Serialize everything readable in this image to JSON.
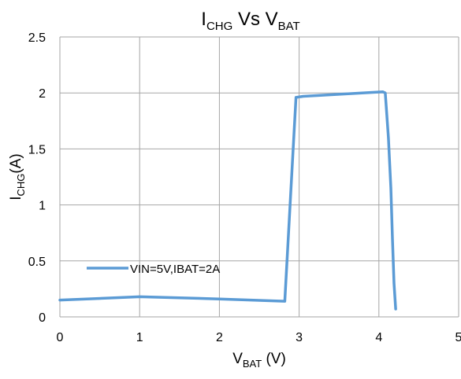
{
  "chart_data": {
    "type": "line",
    "title": {
      "main": "I",
      "main_sub": "CHG",
      "mid": " Vs V",
      "end_sub": "BAT"
    },
    "xlabel": {
      "main": "V",
      "sub": "BAT",
      "rest": " (V)"
    },
    "ylabel": {
      "main": "I",
      "sub": "CHG",
      "rest": "(A)"
    },
    "xlim": [
      0,
      5
    ],
    "ylim": [
      0,
      2.5
    ],
    "x_ticks": [
      "0",
      "1",
      "2",
      "3",
      "4",
      "5"
    ],
    "y_ticks": [
      "0",
      "0.5",
      "1",
      "1.5",
      "2",
      "2.5"
    ],
    "grid": true,
    "legend_position": "lower-left",
    "series": [
      {
        "name": "VIN=5V,IBAT=2A",
        "color": "#5B9BD5",
        "x": [
          0,
          1,
          2,
          2.82,
          2.96,
          3.05,
          4.05,
          4.08,
          4.12,
          4.15,
          4.17,
          4.19,
          4.21
        ],
        "y": [
          0.15,
          0.18,
          0.16,
          0.14,
          1.96,
          1.97,
          2.01,
          2.0,
          1.6,
          1.15,
          0.7,
          0.3,
          0.07
        ]
      }
    ]
  }
}
